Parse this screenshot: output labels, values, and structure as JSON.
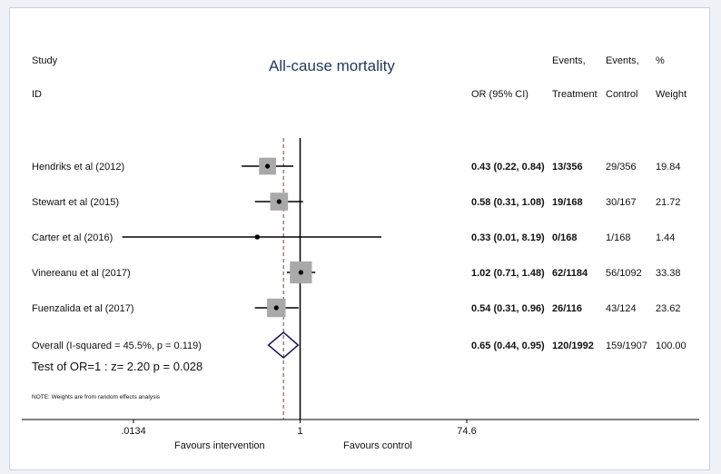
{
  "chart_data": {
    "type": "forest",
    "title": "All-cause mortality",
    "headers": {
      "study_line1": "Study",
      "study_line2": "ID",
      "or": "OR (95% CI)",
      "treatment_line1": "Events,",
      "treatment_line2": "Treatment",
      "control_line1": "Events,",
      "control_line2": "Control",
      "weight_line1": "%",
      "weight_line2": "Weight"
    },
    "studies": [
      {
        "label": "Hendriks et al (2012)",
        "or": 0.43,
        "lower": 0.22,
        "upper": 0.84,
        "or_text": "0.43 (0.22, 0.84)",
        "treatment": "13/356",
        "control": "29/356",
        "weight": "19.84",
        "weight_value": 19.84
      },
      {
        "label": "Stewart et al (2015)",
        "or": 0.58,
        "lower": 0.31,
        "upper": 1.08,
        "or_text": "0.58 (0.31, 1.08)",
        "treatment": "19/168",
        "control": "30/167",
        "weight": "21.72",
        "weight_value": 21.72
      },
      {
        "label": "Carter et al (2016)",
        "or": 0.33,
        "lower": 0.01,
        "upper": 8.19,
        "or_text": "0.33 (0.01, 8.19)",
        "treatment": "0/168",
        "control": "1/168",
        "weight": "1.44",
        "weight_value": 1.44
      },
      {
        "label": "Vinereanu et al (2017)",
        "or": 1.02,
        "lower": 0.71,
        "upper": 1.48,
        "or_text": "1.02 (0.71, 1.48)",
        "treatment": "62/1184",
        "control": "56/1092",
        "weight": "33.38",
        "weight_value": 33.38
      },
      {
        "label": "Fuenzalida et al (2017)",
        "or": 0.54,
        "lower": 0.31,
        "upper": 0.96,
        "or_text": "0.54 (0.31, 0.96)",
        "treatment": "26/116",
        "control": "43/124",
        "weight": "23.62",
        "weight_value": 23.62
      }
    ],
    "overall": {
      "label": "Overall  (I-squared = 45.5%, p = 0.119)",
      "or": 0.65,
      "lower": 0.44,
      "upper": 0.95,
      "or_text": "0.65 (0.44, 0.95)",
      "treatment": "120/1992",
      "control": "159/1907",
      "weight": "100.00"
    },
    "test_text": "Test of OR=1 : z=   2.20 p = 0.028",
    "note": "NOTE: Weights are from random effects analysis",
    "x_axis": {
      "scale": "log",
      "range": [
        0.0134,
        74.6
      ],
      "ticks": [
        {
          "value": 0.0134,
          "label": ".0134"
        },
        {
          "value": 1,
          "label": "1"
        },
        {
          "value": 74.6,
          "label": "74.6"
        }
      ],
      "left_label": "Favours intervention",
      "right_label": "Favours control",
      "null_value": 1
    },
    "colors": {
      "box": "#a9a9a9",
      "lines": "#000000",
      "diamond": "#1a1a5e",
      "dashed": "#7a3b3b",
      "title": "#23395d"
    }
  }
}
